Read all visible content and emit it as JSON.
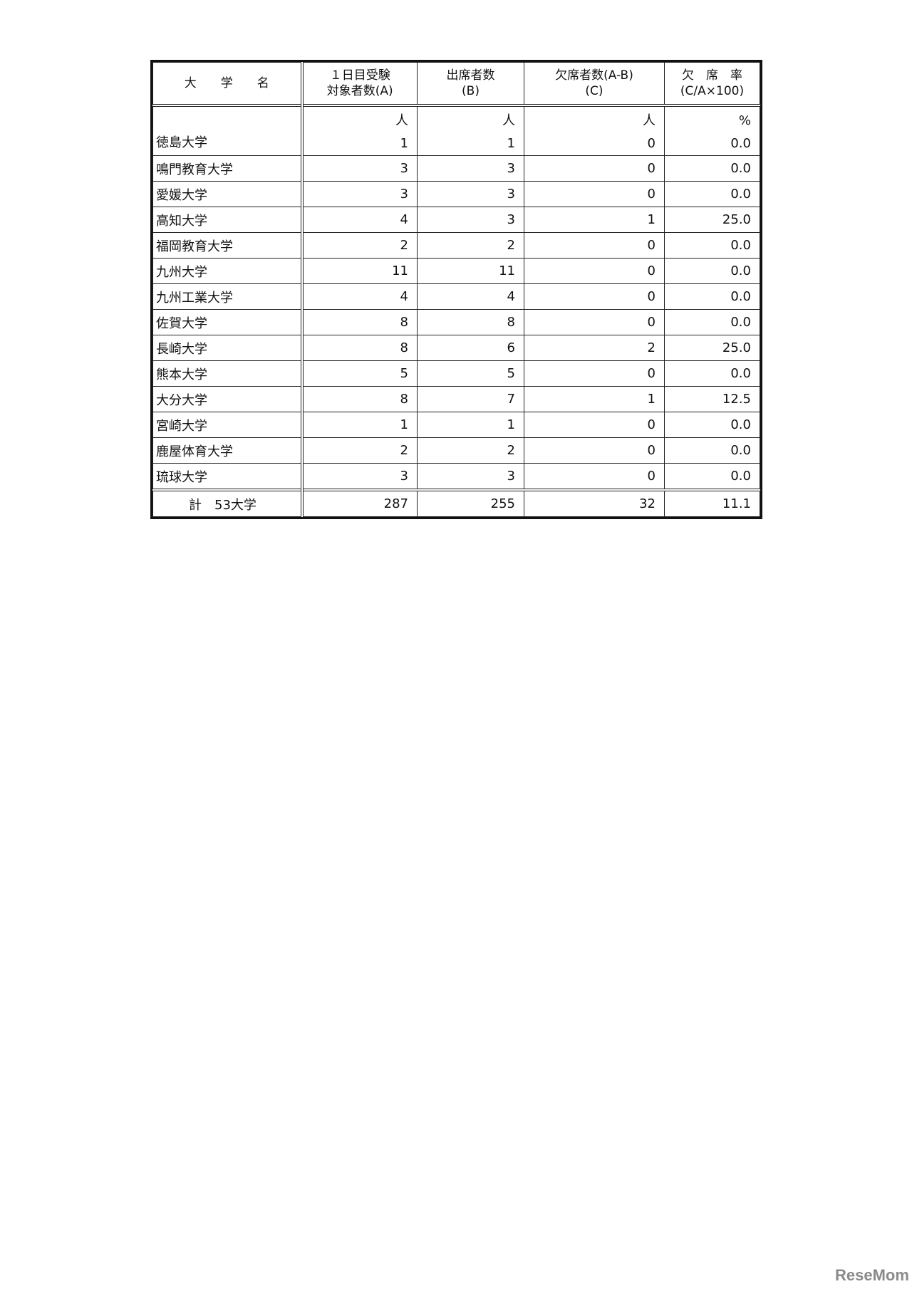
{
  "table": {
    "headers": [
      [
        "大　　学　　名"
      ],
      [
        "１日目受験",
        "対象者数(A)"
      ],
      [
        "出席者数",
        "(B)"
      ],
      [
        "欠席者数(A-B)",
        "(C)"
      ],
      [
        "欠　席　率",
        "(C/A×100)"
      ]
    ],
    "units": [
      "人",
      "人",
      "人",
      "%"
    ],
    "rows": [
      [
        "徳島大学",
        "1",
        "1",
        "0",
        "0.0"
      ],
      [
        "鳴門教育大学",
        "3",
        "3",
        "0",
        "0.0"
      ],
      [
        "愛媛大学",
        "3",
        "3",
        "0",
        "0.0"
      ],
      [
        "高知大学",
        "4",
        "3",
        "1",
        "25.0"
      ],
      [
        "福岡教育大学",
        "2",
        "2",
        "0",
        "0.0"
      ],
      [
        "九州大学",
        "11",
        "11",
        "0",
        "0.0"
      ],
      [
        "九州工業大学",
        "4",
        "4",
        "0",
        "0.0"
      ],
      [
        "佐賀大学",
        "8",
        "8",
        "0",
        "0.0"
      ],
      [
        "長崎大学",
        "8",
        "6",
        "2",
        "25.0"
      ],
      [
        "熊本大学",
        "5",
        "5",
        "0",
        "0.0"
      ],
      [
        "大分大学",
        "8",
        "7",
        "1",
        "12.5"
      ],
      [
        "宮崎大学",
        "1",
        "1",
        "0",
        "0.0"
      ],
      [
        "鹿屋体育大学",
        "2",
        "2",
        "0",
        "0.0"
      ],
      [
        "琉球大学",
        "3",
        "3",
        "0",
        "0.0"
      ]
    ],
    "total": [
      "計　53大学",
      "287",
      "255",
      "32",
      "11.1"
    ]
  },
  "watermark": "ReseMom"
}
